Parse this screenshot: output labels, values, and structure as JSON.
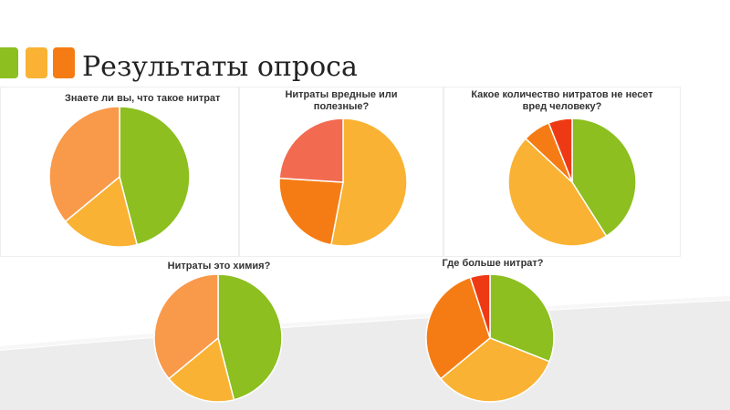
{
  "slide": {
    "title": "Результаты опроса",
    "accent_colors": [
      "#8cbf1f",
      "#f9b233",
      "#f57c14"
    ]
  },
  "chart_data": [
    {
      "type": "pie",
      "title": "Знаете ли вы, что такое нитрат",
      "values": [
        46,
        18,
        36
      ],
      "colors": [
        "#8cbf1f",
        "#f9b233",
        "#f9994a"
      ]
    },
    {
      "type": "pie",
      "title": "Нитраты вредные или полезные?",
      "values": [
        53,
        23,
        24
      ],
      "colors": [
        "#f9b233",
        "#f57c14",
        "#f26b50"
      ]
    },
    {
      "type": "pie",
      "title": "Какое количество нитратов не несет вред человеку?",
      "values": [
        41,
        46,
        7,
        6
      ],
      "colors": [
        "#8cbf1f",
        "#f9b233",
        "#f57c14",
        "#ee3a14"
      ]
    },
    {
      "type": "pie",
      "title": "Нитраты это химия?",
      "values": [
        46,
        18,
        36
      ],
      "colors": [
        "#8cbf1f",
        "#f9b233",
        "#f9994a"
      ]
    },
    {
      "type": "pie",
      "title": "Где больше нитрат?",
      "values": [
        31,
        33,
        31,
        5
      ],
      "colors": [
        "#8cbf1f",
        "#f9b233",
        "#f57c14",
        "#ee3a14"
      ]
    }
  ]
}
